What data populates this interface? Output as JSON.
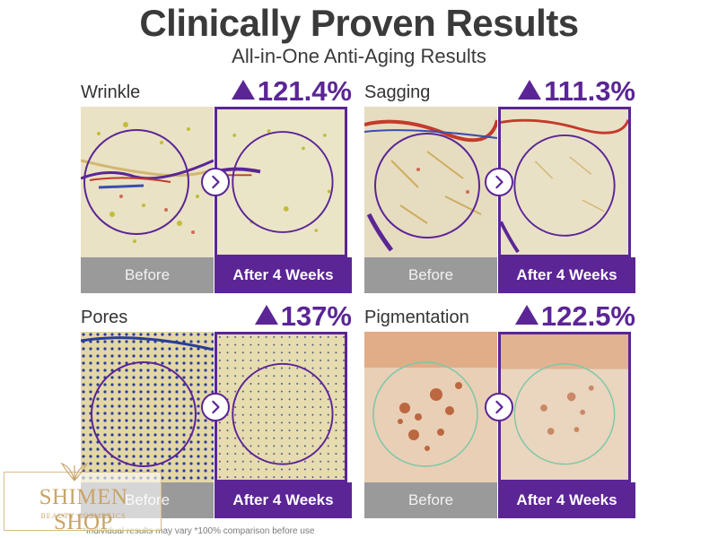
{
  "header": {
    "title": "Clinically Proven Results",
    "subtitle": "All-in-One Anti-Aging Results"
  },
  "panels": [
    {
      "label": "Wrinkle",
      "percent": "121.4%",
      "before_caption": "Before",
      "after_caption": "After 4 Weeks"
    },
    {
      "label": "Sagging",
      "percent": "111.3%",
      "before_caption": "Before",
      "after_caption": "After 4 Weeks"
    },
    {
      "label": "Pores",
      "percent": "137%",
      "before_caption": "Before",
      "after_caption": "After 4 Weeks"
    },
    {
      "label": "Pigmentation",
      "percent": "122.5%",
      "before_caption": "Before",
      "after_caption": "After 4 Weeks"
    }
  ],
  "footnote": "*Individual results may vary  *100% comparison before use",
  "watermark": {
    "name": "SHIMEN SHOP",
    "tagline": "BEAUTY COSMETICS"
  },
  "colors": {
    "accent": "#5b2596",
    "caption_gray": "#9a9a9a",
    "title": "#3a3a3a"
  },
  "icons": {
    "arrow": "chevron-right-icon",
    "increase": "triangle-up-icon"
  }
}
